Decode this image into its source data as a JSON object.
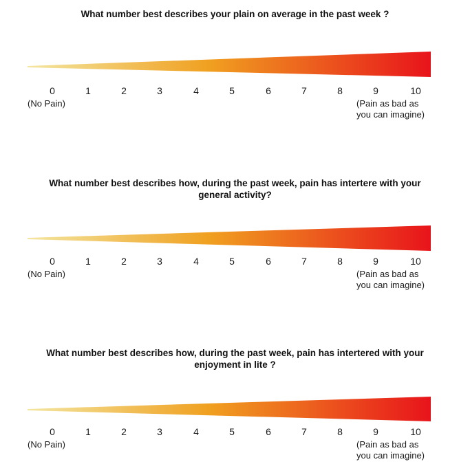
{
  "scale": {
    "numbers": [
      "0",
      "1",
      "2",
      "3",
      "4",
      "5",
      "6",
      "7",
      "8",
      "9",
      "10"
    ],
    "low_anchor": "(No Pain)",
    "high_anchor_line1": "(Pain as bad as",
    "high_anchor_line2": "you can imagine)",
    "colors": {
      "start": "#f3e6a0",
      "mid": "#f0a020",
      "end": "#e8141b"
    }
  },
  "questions": [
    {
      "title_line1": "What number best describes your plain on average in the past week ?",
      "title_line2": ""
    },
    {
      "title_line1": "What number best describes how, during the past week, pain has intertere with your",
      "title_line2": "general activity?"
    },
    {
      "title_line1": "What number best describes how, during the past week, pain has intertered with your",
      "title_line2": "enjoyment in lite ?"
    }
  ]
}
